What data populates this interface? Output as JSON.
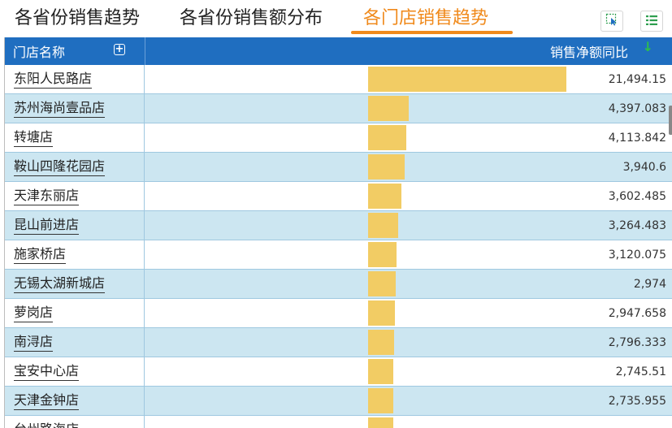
{
  "tabs": [
    {
      "label": "各省份销售趋势"
    },
    {
      "label": "各省份销售额分布"
    },
    {
      "label": "各门店销售趋势"
    }
  ],
  "active_tab": 2,
  "toolbar": {
    "select_icon": "cursor-select-icon",
    "list_icon": "list-icon"
  },
  "table": {
    "header": {
      "name": "门店名称",
      "metric": "销售净额同比",
      "expand_icon": "plus-square-icon",
      "sort_icon": "arrow-down-icon"
    },
    "max_value": 21494.15,
    "rows": [
      {
        "name": "东阳人民路店",
        "value": 21494.15,
        "display": "21,494.15"
      },
      {
        "name": "苏州海尚壹品店",
        "value": 4397.083,
        "display": "4,397.083"
      },
      {
        "name": "转塘店",
        "value": 4113.842,
        "display": "4,113.842"
      },
      {
        "name": "鞍山四隆花园店",
        "value": 3940.6,
        "display": "3,940.6"
      },
      {
        "name": "天津东丽店",
        "value": 3602.485,
        "display": "3,602.485"
      },
      {
        "name": "昆山前进店",
        "value": 3264.483,
        "display": "3,264.483"
      },
      {
        "name": "施家桥店",
        "value": 3120.075,
        "display": "3,120.075"
      },
      {
        "name": "无锡太湖新城店",
        "value": 2974,
        "display": "2,974"
      },
      {
        "name": "萝岗店",
        "value": 2947.658,
        "display": "2,947.658"
      },
      {
        "name": "南浔店",
        "value": 2796.333,
        "display": "2,796.333"
      },
      {
        "name": "宝安中心店",
        "value": 2745.51,
        "display": "2,745.51"
      },
      {
        "name": "天津金钟店",
        "value": 2735.955,
        "display": "2,735.955"
      },
      {
        "name": "台州路海店",
        "value": 2720,
        "display": ""
      }
    ]
  },
  "colors": {
    "header_bg": "#1f6ec0",
    "row_alt": "#cce6f1",
    "bar": "#f2cc64",
    "active_tab": "#f08a1c",
    "sort_arrow": "#2fbf4a"
  }
}
